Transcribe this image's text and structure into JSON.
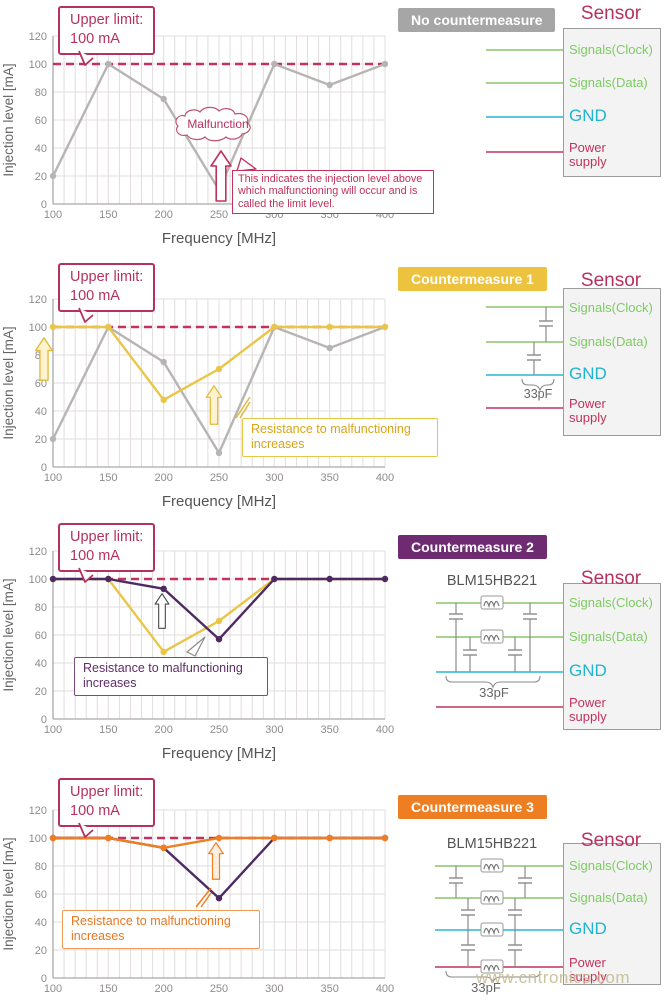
{
  "page": {
    "watermark": "www.cntronics.com"
  },
  "colors": {
    "crimson": "#b5325c",
    "limit_dash": "#c2325c",
    "gray_series": "#b7b4b4",
    "yellow_series": "#e9c648",
    "purple_series": "#4e2a63",
    "orange_series": "#ef7d22",
    "signal_green": "#7ecb63",
    "gnd_cyan": "#1fb4d2",
    "badge_gray": "#a6a6a6",
    "badge_yellow": "#ecc23f",
    "badge_purple": "#6e2b72",
    "badge_orange": "#ef7d22"
  },
  "shared": {
    "upper_limit_line1": "Upper limit:",
    "upper_limit_line2": "100 mA",
    "malfunction_label": "Malfunction",
    "limit_note": "This indicates the injection level above which malfunctioning will occur and is called the limit level.",
    "resistance_note": "Resistance to malfunctioning increases",
    "sensor_title": "Sensor",
    "pin_clock": "Signals(Clock)",
    "pin_data": "Signals(Data)",
    "pin_gnd": "GND",
    "pin_power": "Power supply",
    "bead_part": "BLM15HB221",
    "cap_value": "33pF"
  },
  "sections": [
    {
      "badge": "No countermeasure",
      "badge_color": "#a6a6a6"
    },
    {
      "badge": "Countermeasure 1",
      "badge_color": "#ecc23f"
    },
    {
      "badge": "Countermeasure 2",
      "badge_color": "#6e2b72"
    },
    {
      "badge": "Countermeasure 3",
      "badge_color": "#ef7d22"
    }
  ],
  "chart_data": [
    {
      "type": "line",
      "title": "No countermeasure",
      "xlabel": "Frequency  [MHz]",
      "ylabel": "Injection level [mA]",
      "xlim": [
        100,
        400
      ],
      "ylim": [
        0,
        120
      ],
      "x_ticks": [
        100,
        150,
        200,
        250,
        300,
        350,
        400
      ],
      "y_ticks": [
        0,
        20,
        40,
        60,
        80,
        100,
        120
      ],
      "grid": true,
      "x_minor_step": 10,
      "limit_line": {
        "value": 100,
        "label": "Upper limit: 100 mA",
        "color": "#c2325c",
        "style": "dashed"
      },
      "x": [
        100,
        150,
        200,
        250,
        300,
        350,
        400
      ],
      "series": [
        {
          "name": "No countermeasure",
          "color": "#b7b4b4",
          "values": [
            20,
            100,
            75,
            10,
            100,
            85,
            100
          ]
        }
      ]
    },
    {
      "type": "line",
      "title": "Countermeasure 1",
      "xlabel": "Frequency  [MHz]",
      "ylabel": "Injection level [mA]",
      "xlim": [
        100,
        400
      ],
      "ylim": [
        0,
        120
      ],
      "x_ticks": [
        100,
        150,
        200,
        250,
        300,
        350,
        400
      ],
      "y_ticks": [
        0,
        20,
        40,
        60,
        80,
        100,
        120
      ],
      "grid": true,
      "x_minor_step": 10,
      "limit_line": {
        "value": 100,
        "label": "Upper limit: 100 mA",
        "color": "#c2325c",
        "style": "dashed"
      },
      "x": [
        100,
        150,
        200,
        250,
        300,
        350,
        400
      ],
      "series": [
        {
          "name": "No countermeasure",
          "color": "#b7b4b4",
          "values": [
            20,
            100,
            75,
            10,
            100,
            85,
            100
          ]
        },
        {
          "name": "Countermeasure 1",
          "color": "#e9c648",
          "values": [
            100,
            100,
            48,
            70,
            100,
            100,
            100
          ]
        }
      ]
    },
    {
      "type": "line",
      "title": "Countermeasure 2",
      "xlabel": "Frequency  [MHz]",
      "ylabel": "Injection level [mA]",
      "xlim": [
        100,
        400
      ],
      "ylim": [
        0,
        120
      ],
      "x_ticks": [
        100,
        150,
        200,
        250,
        300,
        350,
        400
      ],
      "y_ticks": [
        0,
        20,
        40,
        60,
        80,
        100,
        120
      ],
      "grid": true,
      "x_minor_step": 10,
      "limit_line": {
        "value": 100,
        "label": "Upper limit: 100 mA",
        "color": "#c2325c",
        "style": "dashed"
      },
      "x": [
        100,
        150,
        200,
        250,
        300,
        350,
        400
      ],
      "series": [
        {
          "name": "Countermeasure 1",
          "color": "#e9c648",
          "values": [
            100,
            100,
            48,
            70,
            100,
            100,
            100
          ]
        },
        {
          "name": "Countermeasure 2",
          "color": "#4e2a63",
          "values": [
            100,
            100,
            93,
            57,
            100,
            100,
            100
          ]
        }
      ]
    },
    {
      "type": "line",
      "title": "Countermeasure 3",
      "xlabel": "",
      "ylabel": "Injection level [mA]",
      "xlim": [
        100,
        400
      ],
      "ylim": [
        0,
        120
      ],
      "x_ticks": [
        100,
        150,
        200,
        250,
        300,
        350,
        400
      ],
      "y_ticks": [
        0,
        20,
        40,
        60,
        80,
        100,
        120
      ],
      "grid": true,
      "x_minor_step": 10,
      "limit_line": {
        "value": 100,
        "label": "Upper limit: 100 mA",
        "color": "#c2325c",
        "style": "dashed"
      },
      "x": [
        100,
        150,
        200,
        250,
        300,
        350,
        400
      ],
      "series": [
        {
          "name": "Countermeasure 2",
          "color": "#4e2a63",
          "values": [
            100,
            100,
            93,
            57,
            100,
            100,
            100
          ]
        },
        {
          "name": "Countermeasure 3",
          "color": "#ef7d22",
          "values": [
            100,
            100,
            93,
            100,
            100,
            100,
            100
          ]
        }
      ]
    }
  ]
}
